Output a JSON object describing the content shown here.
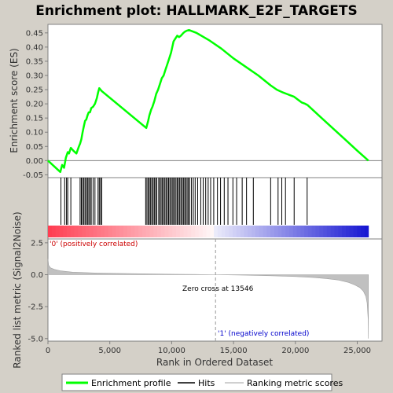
{
  "chart_data": {
    "type": "line",
    "title": "Enrichment plot: HALLMARK_E2F_TARGETS",
    "top_panel": {
      "ylabel": "Enrichment score (ES)",
      "ylim": [
        -0.06,
        0.48
      ],
      "yticks": [
        "-0.05",
        "0.00",
        "0.05",
        "0.10",
        "0.15",
        "0.20",
        "0.25",
        "0.30",
        "0.35",
        "0.40",
        "0.45"
      ],
      "series": [
        {
          "name": "Enrichment profile",
          "color": "#00ff00",
          "x": [
            0,
            1000,
            1150,
            1300,
            1450,
            1600,
            1700,
            1850,
            2050,
            2300,
            2500,
            2600,
            2700,
            2800,
            2900,
            3000,
            3100,
            3200,
            3300,
            3400,
            3500,
            3650,
            3800,
            3950,
            4050,
            4150,
            4250,
            4350,
            7950,
            8100,
            8200,
            8350,
            8450,
            8600,
            8750,
            8900,
            9050,
            9200,
            9350,
            9500,
            9650,
            9800,
            9950,
            10050,
            10150,
            10300,
            10450,
            10600,
            10750,
            10850,
            10950,
            11100,
            11250,
            11400,
            12000,
            13000,
            14000,
            15000,
            16000,
            17000,
            18000,
            18500,
            19000,
            19300,
            19600,
            19900,
            20200,
            20500,
            20800,
            21000,
            22000,
            23000,
            24000,
            25000,
            25900
          ],
          "y": [
            0.0,
            -0.04,
            -0.015,
            -0.025,
            0.01,
            0.03,
            0.025,
            0.045,
            0.035,
            0.025,
            0.05,
            0.06,
            0.075,
            0.1,
            0.12,
            0.14,
            0.145,
            0.16,
            0.17,
            0.17,
            0.185,
            0.19,
            0.2,
            0.22,
            0.24,
            0.255,
            0.25,
            0.245,
            0.115,
            0.14,
            0.16,
            0.18,
            0.19,
            0.21,
            0.235,
            0.25,
            0.27,
            0.29,
            0.3,
            0.32,
            0.34,
            0.36,
            0.38,
            0.4,
            0.42,
            0.43,
            0.44,
            0.435,
            0.44,
            0.445,
            0.45,
            0.455,
            0.458,
            0.46,
            0.45,
            0.425,
            0.395,
            0.36,
            0.33,
            0.3,
            0.265,
            0.25,
            0.24,
            0.235,
            0.23,
            0.225,
            0.215,
            0.205,
            0.2,
            0.195,
            0.155,
            0.115,
            0.075,
            0.035,
            0.0
          ]
        }
      ]
    },
    "hits": {
      "name": "Hits",
      "color": "#000000",
      "x": [
        1050,
        1350,
        1500,
        1600,
        1850,
        2600,
        2700,
        2800,
        2900,
        3000,
        3100,
        3200,
        3300,
        3400,
        3500,
        3650,
        3800,
        4050,
        4150,
        4250,
        4350,
        7900,
        8000,
        8100,
        8200,
        8300,
        8400,
        8500,
        8600,
        8700,
        8800,
        8950,
        9050,
        9150,
        9250,
        9350,
        9450,
        9550,
        9650,
        9750,
        9850,
        9950,
        10050,
        10150,
        10250,
        10350,
        10450,
        10550,
        10650,
        10750,
        10850,
        10950,
        11050,
        11150,
        11250,
        11350,
        11450,
        11600,
        11750,
        11900,
        12100,
        12350,
        12550,
        12750,
        12950,
        13150,
        13400,
        13700,
        13950,
        14250,
        14550,
        14950,
        15250,
        15700,
        16050,
        16600,
        18000,
        18600,
        18900,
        19200,
        19900,
        20950
      ]
    },
    "bottom_panel": {
      "ylabel": "Ranked list metric (Signal2Noise)",
      "xlabel": "Rank in Ordered Dataset",
      "ylim": [
        -5.2,
        2.8
      ],
      "yticks": [
        "-5.0",
        "-2.5",
        "0.0",
        "2.5"
      ],
      "xlim": [
        0,
        27000
      ],
      "xticks": [
        "0",
        "5,000",
        "10,000",
        "15,000",
        "20,000",
        "25,000"
      ],
      "zero_cross": 13546,
      "n_genes": 25900,
      "ranked_metric": {
        "name": "Ranking metric scores",
        "color": "#c0c0c0",
        "x": [
          0,
          50,
          200,
          500,
          1000,
          2000,
          4000,
          6000,
          8000,
          10000,
          12000,
          13546,
          16000,
          18000,
          20000,
          21500,
          22500,
          23500,
          24300,
          24800,
          25200,
          25500,
          25700,
          25800,
          25880,
          25900
        ],
        "y": [
          1.25,
          0.75,
          0.55,
          0.42,
          0.3,
          0.2,
          0.13,
          0.1,
          0.07,
          0.04,
          0.02,
          0.0,
          -0.04,
          -0.08,
          -0.14,
          -0.22,
          -0.3,
          -0.42,
          -0.6,
          -0.8,
          -1.0,
          -1.3,
          -1.7,
          -2.2,
          -3.5,
          -5.0
        ]
      }
    },
    "annotations": {
      "positive": "'0' (positively correlated)",
      "negative": "'1' (negatively correlated)",
      "zero_cross_label": "Zero cross at 13546",
      "positive_color": "#cc0000",
      "negative_color": "#0000cc"
    },
    "legend": {
      "placement": "bottom",
      "items": [
        {
          "label": "Enrichment profile",
          "color": "#00ff00"
        },
        {
          "label": "Hits",
          "color": "#000000"
        },
        {
          "label": "Ranking metric scores",
          "color": "#c0c0c0"
        }
      ]
    }
  }
}
